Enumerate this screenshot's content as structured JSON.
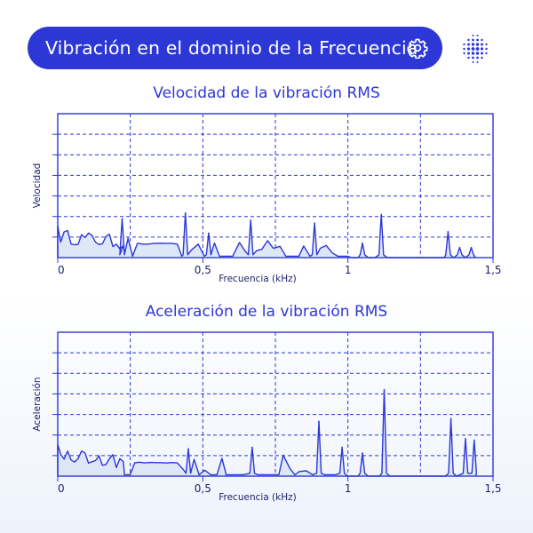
{
  "header": {
    "title": "Vibración en el dominio de la Frecuencia",
    "settings_icon": "gear-icon",
    "logo_icon": "dot-sphere-logo-icon",
    "colors": {
      "pill": "#2c37d6",
      "accent": "#2c37d6",
      "fill": "#dde7f8"
    }
  },
  "chart_data": [
    {
      "type": "line",
      "title": "Velocidad de la vibración RMS",
      "xlabel": "Frecuencia (kHz)",
      "ylabel": "Velocidad",
      "xlim": [
        0,
        1.5
      ],
      "x_ticks": [
        "0",
        "0,5",
        "1",
        "1,5"
      ],
      "grid": true,
      "y_tick_count": 7,
      "peaks": [
        {
          "x": 0.222,
          "y": 0.27
        },
        {
          "x": 0.44,
          "y": 0.31
        },
        {
          "x": 0.52,
          "y": 0.17
        },
        {
          "x": 0.665,
          "y": 0.26
        },
        {
          "x": 0.885,
          "y": 0.24
        },
        {
          "x": 1.05,
          "y": 0.1
        },
        {
          "x": 1.115,
          "y": 0.3
        },
        {
          "x": 1.345,
          "y": 0.18
        },
        {
          "x": 1.385,
          "y": 0.07
        },
        {
          "x": 1.425,
          "y": 0.07
        }
      ]
    },
    {
      "type": "line",
      "title": "Aceleración de la vibración RMS",
      "xlabel": "Frecuencia (kHz)",
      "ylabel": "Aceleración",
      "xlim": [
        0,
        1.5
      ],
      "x_ticks": [
        "0",
        "0,5",
        "1",
        "1,5"
      ],
      "grid": true,
      "y_tick_count": 7,
      "peaks": [
        {
          "x": 0.45,
          "y": 0.19
        },
        {
          "x": 0.67,
          "y": 0.2
        },
        {
          "x": 0.9,
          "y": 0.38
        },
        {
          "x": 0.98,
          "y": 0.2
        },
        {
          "x": 1.05,
          "y": 0.16
        },
        {
          "x": 1.125,
          "y": 0.6
        },
        {
          "x": 1.355,
          "y": 0.4
        },
        {
          "x": 1.405,
          "y": 0.26
        },
        {
          "x": 1.435,
          "y": 0.25
        }
      ]
    }
  ]
}
